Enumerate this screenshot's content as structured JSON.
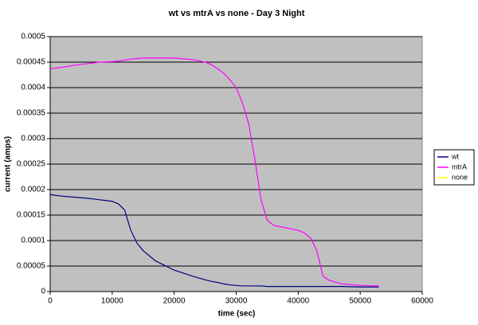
{
  "chart_data": {
    "type": "line",
    "title": "wt vs mtrA vs none - Day 3 Night",
    "x_label": "time (sec)",
    "y_label": "current (amps)",
    "x": [
      0,
      2000,
      4000,
      6000,
      8000,
      10000,
      11000,
      12000,
      13000,
      14000,
      15000,
      17000,
      20000,
      23000,
      25000,
      26000,
      27000,
      28000,
      29000,
      30000,
      31000,
      32000,
      33000,
      34000,
      35000,
      36000,
      38000,
      40000,
      41000,
      42000,
      43000,
      44000,
      45000,
      47000,
      50000,
      53000
    ],
    "series": [
      {
        "name": "wt",
        "color": "#000080",
        "values": [
          0.00019,
          0.000187,
          0.000185,
          0.000183,
          0.00018,
          0.000177,
          0.000172,
          0.00016,
          0.00012,
          9.5e-05,
          8e-05,
          6e-05,
          4.2e-05,
          3e-05,
          2.3e-05,
          2e-05,
          1.8e-05,
          1.5e-05,
          1.3e-05,
          1.2e-05,
          1.1e-05,
          1.1e-05,
          1.1e-05,
          1.1e-05,
          1e-05,
          1e-05,
          1e-05,
          1e-05,
          1e-05,
          1e-05,
          1e-05,
          1e-05,
          1e-05,
          1e-05,
          9e-06,
          9e-06
        ]
      },
      {
        "name": "mtrA",
        "color": "#ff00ff",
        "values": [
          0.000437,
          0.00044,
          0.000444,
          0.000447,
          0.00045,
          0.000451,
          0.000452,
          0.000454,
          0.000456,
          0.000457,
          0.000458,
          0.000458,
          0.000458,
          0.000455,
          0.00045,
          0.000445,
          0.000437,
          0.000428,
          0.000415,
          0.0004,
          0.00037,
          0.00033,
          0.00026,
          0.00018,
          0.00014,
          0.00013,
          0.000125,
          0.00012,
          0.000115,
          0.000105,
          8e-05,
          3e-05,
          2.2e-05,
          1.5e-05,
          1.2e-05,
          1.1e-05
        ]
      },
      {
        "name": "none",
        "color": "#ffff00",
        "values": [
          null,
          null,
          null,
          null,
          null,
          null,
          null,
          null,
          null,
          null,
          null,
          null,
          null,
          null,
          null,
          null,
          null,
          null,
          null,
          null,
          null,
          null,
          null,
          null,
          null,
          null,
          null,
          null,
          null,
          null,
          null,
          null,
          null,
          null,
          null,
          null
        ]
      }
    ],
    "xlim": [
      0,
      60000
    ],
    "xticks": [
      0,
      10000,
      20000,
      30000,
      40000,
      50000,
      60000
    ],
    "ylim": [
      0,
      0.0005
    ],
    "yticks": [
      0,
      5e-05,
      0.0001,
      0.00015,
      0.0002,
      0.00025,
      0.0003,
      0.00035,
      0.0004,
      0.00045,
      0.0005
    ],
    "grid": true,
    "legend": "right",
    "background": "#c0c0c0"
  }
}
